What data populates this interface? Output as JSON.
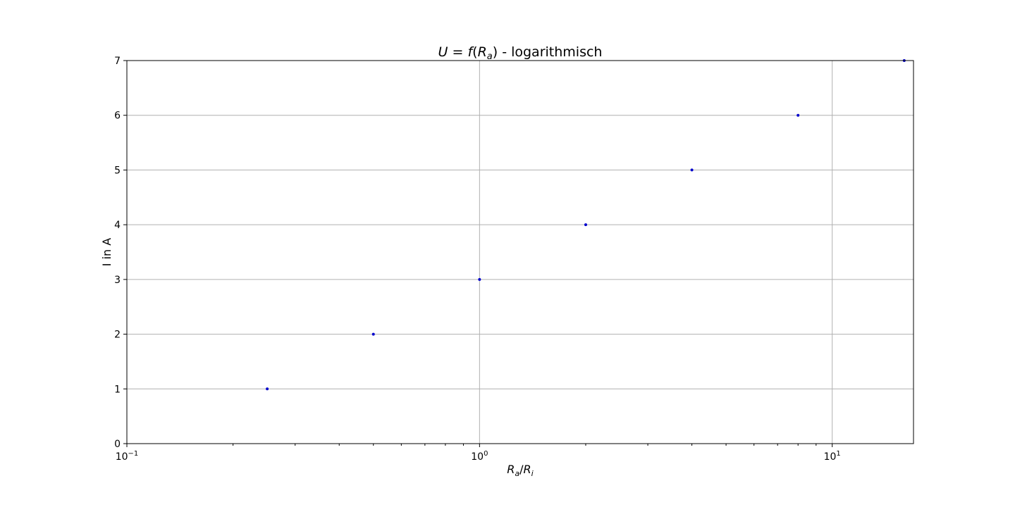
{
  "chart_data": {
    "type": "scatter",
    "title": {
      "lhs": "U",
      "func": "f",
      "arg_main": "R",
      "arg_sub": "a",
      "suffix": " - logarithmisch"
    },
    "xlabel": {
      "num": "R",
      "num_sub": "a",
      "den": "R",
      "den_sub": "i"
    },
    "ylabel": "I in A",
    "x_scale": "log",
    "xlim": [
      0.1,
      17
    ],
    "ylim": [
      0,
      7
    ],
    "x_major_ticks": [
      {
        "value": 0.1,
        "base": "10",
        "exp": "−1"
      },
      {
        "value": 1,
        "base": "10",
        "exp": "0"
      },
      {
        "value": 10,
        "base": "10",
        "exp": "1"
      }
    ],
    "y_ticks": [
      0,
      1,
      2,
      3,
      4,
      5,
      6,
      7
    ],
    "grid": true,
    "marker_color": "#0000cc",
    "series": [
      {
        "x": [
          0.25,
          0.5,
          1,
          2,
          4,
          8,
          16
        ],
        "y": [
          1,
          2,
          3,
          4,
          5,
          6,
          7
        ]
      }
    ]
  }
}
